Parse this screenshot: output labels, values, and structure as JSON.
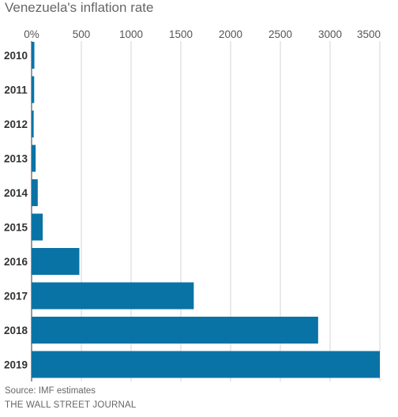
{
  "chart_data": {
    "type": "bar",
    "orientation": "horizontal",
    "title": "Venezuela's inflation rate",
    "categories": [
      "2010",
      "2011",
      "2012",
      "2013",
      "2014",
      "2015",
      "2016",
      "2017",
      "2018",
      "2019"
    ],
    "values": [
      28,
      26,
      21,
      41,
      62,
      112,
      480,
      1630,
      2880,
      3500
    ],
    "xlim": [
      0,
      3500
    ],
    "xticks": [
      0,
      500,
      1000,
      1500,
      2000,
      2500,
      3000,
      3500
    ],
    "xtick_labels": [
      "0%",
      "500",
      "1000",
      "1500",
      "2000",
      "2500",
      "3000",
      "3500"
    ],
    "xtick_position": "top",
    "grid": "vertical",
    "bar_color": "#0a73a5"
  },
  "footer": {
    "source": "Source: IMF estimates",
    "credit": "THE WALL STREET JOURNAL"
  }
}
